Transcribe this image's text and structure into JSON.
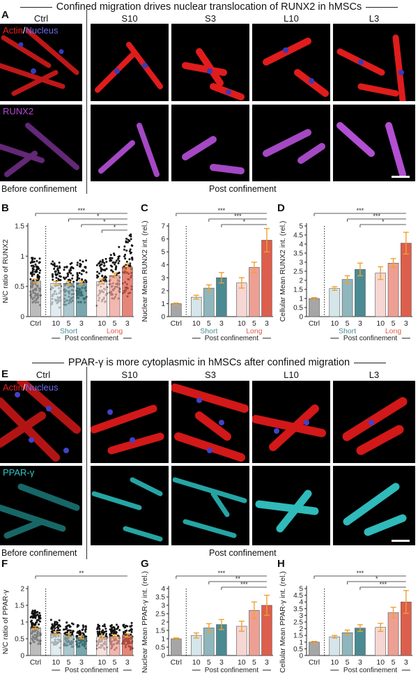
{
  "sections": [
    {
      "title": "Confined migration drives nuclear translocation of RUNX2 in hMSCs",
      "image_panel_label": "A",
      "conditions": [
        "Ctrl",
        "S10",
        "S3",
        "L10",
        "L3"
      ],
      "row1_label_a": "Actin",
      "row1_label_sep": "/",
      "row1_label_b": "Nucleus",
      "row2_label": "RUNX2",
      "row2_color": "#b44bd6",
      "caption_left": "Before confinement",
      "caption_right": "Post confinement"
    },
    {
      "title": "PPAR-γ is more cytoplasmic in hMSCs after confined migration",
      "image_panel_label": "E",
      "conditions": [
        "Ctrl",
        "S10",
        "S3",
        "L10",
        "L3"
      ],
      "row1_label_a": "Actin",
      "row1_label_sep": "/",
      "row1_label_b": "Nucleus",
      "row2_label": "PPAR-γ",
      "row2_color": "#34c6c6",
      "caption_left": "Before confinement",
      "caption_right": "Post confinement"
    }
  ],
  "colors": {
    "ctrl": "#a6a6a6",
    "short": [
      "#d5e6ea",
      "#8fb6bd",
      "#4a8a92"
    ],
    "long": [
      "#f6d6d2",
      "#ee9f94",
      "#dd5e4c"
    ],
    "short_label": "#4a8a92",
    "long_label": "#dd5e4c",
    "error": "#f0a030"
  },
  "chart_data": [
    {
      "panel": "B",
      "type": "bar",
      "ylabel": "N/C ratio of RUNX2",
      "ylim": [
        0,
        1.5
      ],
      "yticks": [
        "0",
        "0.5",
        "1",
        "1.5"
      ],
      "categories": [
        "Ctrl",
        "10",
        "5",
        "3",
        "10",
        "5",
        "3"
      ],
      "values": [
        0.59,
        0.55,
        0.55,
        0.56,
        0.58,
        0.68,
        0.82
      ],
      "errors": [
        0.03,
        0.03,
        0.03,
        0.03,
        0.04,
        0.04,
        0.05
      ],
      "group_labels": [
        "Short",
        "Long"
      ],
      "footer": "Post confinement",
      "significance": [
        "***",
        "*",
        "*",
        "*"
      ]
    },
    {
      "panel": "C",
      "type": "bar",
      "ylabel": "Nuclear Mean RUNX2 int. (rel.)",
      "ylim": [
        0,
        7
      ],
      "yticks": [
        "0",
        "1",
        "2",
        "3",
        "4",
        "5",
        "6",
        "7"
      ],
      "categories": [
        "Ctrl",
        "10",
        "5",
        "3",
        "10",
        "5",
        "3"
      ],
      "values": [
        1.0,
        1.5,
        2.2,
        3.0,
        2.6,
        3.8,
        5.9
      ],
      "errors": [
        0.05,
        0.15,
        0.25,
        0.4,
        0.4,
        0.4,
        0.9
      ],
      "group_labels": [
        "Short",
        "Long"
      ],
      "footer": "Post confinement",
      "significance": [
        "***",
        "***",
        "*"
      ]
    },
    {
      "panel": "D",
      "type": "bar",
      "ylabel": "Cellular Mean RUNX2 int. (rel.)",
      "ylim": [
        0,
        5
      ],
      "yticks": [
        "0",
        "0.5",
        "1",
        "1.5",
        "2",
        "2.5",
        "3",
        "3.5",
        "4",
        "4.5",
        "5"
      ],
      "categories": [
        "Ctrl",
        "10",
        "5",
        "3",
        "10",
        "5",
        "3"
      ],
      "values": [
        1.0,
        1.55,
        2.05,
        2.6,
        2.4,
        2.95,
        4.05
      ],
      "errors": [
        0.05,
        0.1,
        0.2,
        0.35,
        0.35,
        0.25,
        0.6
      ],
      "group_labels": [
        "Short",
        "Long"
      ],
      "footer": "Post confinement",
      "significance": [
        "***",
        "***",
        "*"
      ]
    },
    {
      "panel": "F",
      "type": "bar",
      "ylabel": "N/C ratio of PPAR-γ",
      "ylim": [
        0,
        2
      ],
      "yticks": [
        "0",
        "0.5",
        "1",
        "1.5",
        "2"
      ],
      "categories": [
        "Ctrl",
        "10",
        "5",
        "3",
        "10",
        "5",
        "3"
      ],
      "values": [
        0.83,
        0.66,
        0.6,
        0.54,
        0.55,
        0.57,
        0.6
      ],
      "errors": [
        0.04,
        0.05,
        0.05,
        0.04,
        0.05,
        0.05,
        0.05
      ],
      "group_labels": [],
      "footer": "Post confinement",
      "significance": [
        "**"
      ]
    },
    {
      "panel": "G",
      "type": "bar",
      "ylabel": "Nuclear Mean PPAR-γ int. (rel.)",
      "ylim": [
        0,
        4
      ],
      "yticks": [
        "0",
        "0.5",
        "1",
        "1.5",
        "2",
        "2.5",
        "3",
        "3.5",
        "4"
      ],
      "categories": [
        "Ctrl",
        "10",
        "5",
        "3",
        "10",
        "5",
        "3"
      ],
      "values": [
        1.0,
        1.2,
        1.65,
        1.85,
        1.75,
        2.7,
        3.0
      ],
      "errors": [
        0.05,
        0.15,
        0.25,
        0.3,
        0.3,
        0.5,
        0.6
      ],
      "group_labels": [],
      "footer": "Post confinement",
      "significance": [
        "***",
        "**",
        "***"
      ]
    },
    {
      "panel": "H",
      "type": "bar",
      "ylabel": "Cellular Mean PPAR-γ int. (rel.)",
      "ylim": [
        0,
        5
      ],
      "yticks": [
        "0",
        "0.5",
        "1",
        "1.5",
        "2",
        "2.5",
        "3",
        "3.5",
        "4",
        "4.5",
        "5"
      ],
      "categories": [
        "Ctrl",
        "10",
        "5",
        "3",
        "10",
        "5",
        "3"
      ],
      "values": [
        1.0,
        1.4,
        1.7,
        2.05,
        2.1,
        3.2,
        4.0
      ],
      "errors": [
        0.05,
        0.1,
        0.2,
        0.25,
        0.3,
        0.4,
        0.85
      ],
      "group_labels": [],
      "footer": "Post confinement",
      "significance": [
        "***",
        "*",
        "***"
      ]
    }
  ]
}
